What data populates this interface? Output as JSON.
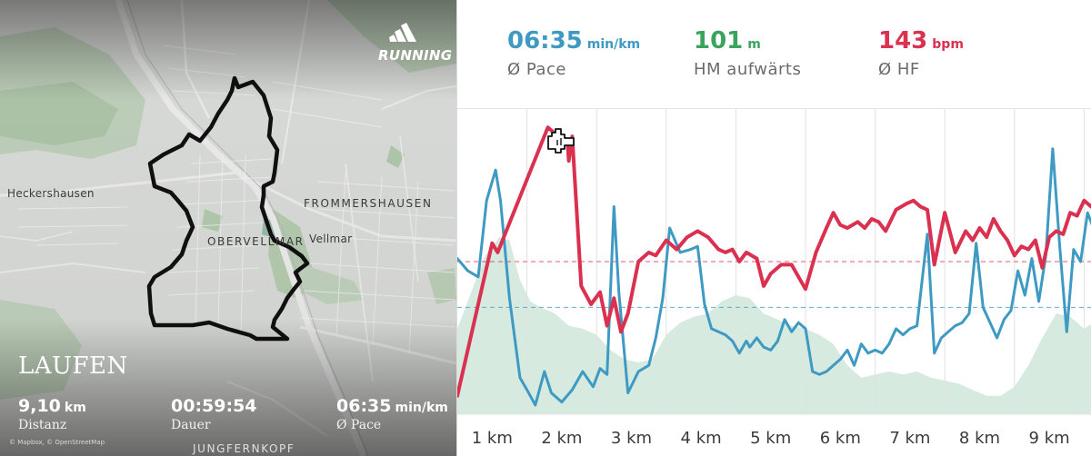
{
  "map": {
    "brand": "RUNNING",
    "activity_type": "LAUFEN",
    "attribution": "© Mapbox, © OpenStreetMap",
    "places": {
      "heckershausen": "Heckershausen",
      "frommershausen": "FROMMERSHAUSEN",
      "obervellmar": "OBERVELLMAR",
      "vellmar": "Vellmar",
      "jungfernkopf": "JUNGFERNKOPF"
    },
    "stats": {
      "distance": {
        "value": "9,10",
        "unit": "km",
        "label": "Distanz"
      },
      "duration": {
        "value": "00:59:54",
        "unit": "",
        "label": "Dauer"
      },
      "pace": {
        "value": "06:35",
        "unit": "min/km",
        "label": "Ø Pace"
      }
    }
  },
  "summary": {
    "pace": {
      "value": "06:35",
      "unit": "min/km",
      "label": "Ø Pace",
      "color": "#3e9ac2"
    },
    "elevation": {
      "value": "101",
      "unit": "m",
      "label": "HM aufwärts",
      "color": "#3aa35c"
    },
    "heart_rate": {
      "value": "143",
      "unit": "bpm",
      "label": "Ø HF",
      "color": "#d9314f"
    }
  },
  "chart_data": {
    "type": "line",
    "categories": [
      "1 km",
      "2 km",
      "3 km",
      "4 km",
      "5 km",
      "6 km",
      "7 km",
      "8 km",
      "9 km"
    ],
    "x_max_km": 9.55,
    "series": [
      {
        "key": "heart_rate",
        "color": "#d9314f",
        "average": 0.5,
        "points": [
          [
            0,
            0.06
          ],
          [
            0.5,
            0.56
          ],
          [
            0.58,
            0.53
          ],
          [
            1.3,
            0.94
          ],
          [
            1.45,
            0.91
          ],
          [
            1.58,
            0.9
          ],
          [
            1.6,
            0.83
          ],
          [
            1.65,
            0.91
          ],
          [
            1.78,
            0.42
          ],
          [
            1.92,
            0.36
          ],
          [
            2.05,
            0.4
          ],
          [
            2.15,
            0.29
          ],
          [
            2.25,
            0.38
          ],
          [
            2.35,
            0.27
          ],
          [
            2.45,
            0.33
          ],
          [
            2.6,
            0.5
          ],
          [
            2.75,
            0.53
          ],
          [
            2.85,
            0.52
          ],
          [
            3.0,
            0.57
          ],
          [
            3.15,
            0.54
          ],
          [
            3.3,
            0.58
          ],
          [
            3.45,
            0.6
          ],
          [
            3.6,
            0.58
          ],
          [
            3.75,
            0.54
          ],
          [
            3.85,
            0.53
          ],
          [
            3.95,
            0.54
          ],
          [
            4.05,
            0.5
          ],
          [
            4.15,
            0.53
          ],
          [
            4.3,
            0.51
          ],
          [
            4.4,
            0.42
          ],
          [
            4.5,
            0.46
          ],
          [
            4.65,
            0.49
          ],
          [
            4.8,
            0.49
          ],
          [
            4.9,
            0.45
          ],
          [
            5.0,
            0.41
          ],
          [
            5.15,
            0.53
          ],
          [
            5.3,
            0.61
          ],
          [
            5.4,
            0.66
          ],
          [
            5.5,
            0.62
          ],
          [
            5.6,
            0.61
          ],
          [
            5.75,
            0.63
          ],
          [
            5.85,
            0.61
          ],
          [
            5.95,
            0.64
          ],
          [
            6.05,
            0.63
          ],
          [
            6.15,
            0.6
          ],
          [
            6.3,
            0.67
          ],
          [
            6.45,
            0.69
          ],
          [
            6.55,
            0.7
          ],
          [
            6.65,
            0.68
          ],
          [
            6.75,
            0.67
          ],
          [
            6.85,
            0.49
          ],
          [
            7.0,
            0.66
          ],
          [
            7.15,
            0.53
          ],
          [
            7.3,
            0.6
          ],
          [
            7.4,
            0.57
          ],
          [
            7.5,
            0.61
          ],
          [
            7.6,
            0.58
          ],
          [
            7.7,
            0.64
          ],
          [
            7.8,
            0.6
          ],
          [
            7.9,
            0.57
          ],
          [
            8.0,
            0.52
          ],
          [
            8.1,
            0.55
          ],
          [
            8.2,
            0.54
          ],
          [
            8.3,
            0.57
          ],
          [
            8.4,
            0.48
          ],
          [
            8.5,
            0.58
          ],
          [
            8.6,
            0.6
          ],
          [
            8.7,
            0.59
          ],
          [
            8.8,
            0.66
          ],
          [
            8.9,
            0.65
          ],
          [
            9.0,
            0.7
          ],
          [
            9.1,
            0.68
          ],
          [
            9.2,
            0.72
          ],
          [
            9.3,
            0.7
          ],
          [
            9.4,
            0.72
          ],
          [
            9.55,
            0.7
          ]
        ]
      },
      {
        "key": "pace",
        "color": "#3e9ac2",
        "average": 0.35,
        "points": [
          [
            0,
            0.51
          ],
          [
            0.15,
            0.47
          ],
          [
            0.3,
            0.45
          ],
          [
            0.42,
            0.7
          ],
          [
            0.55,
            0.8
          ],
          [
            0.62,
            0.7
          ],
          [
            0.75,
            0.38
          ],
          [
            0.9,
            0.12
          ],
          [
            1.0,
            0.08
          ],
          [
            1.12,
            0.03
          ],
          [
            1.25,
            0.14
          ],
          [
            1.35,
            0.07
          ],
          [
            1.5,
            0.04
          ],
          [
            1.65,
            0.08
          ],
          [
            1.8,
            0.14
          ],
          [
            1.95,
            0.09
          ],
          [
            2.05,
            0.15
          ],
          [
            2.15,
            0.13
          ],
          [
            2.25,
            0.68
          ],
          [
            2.32,
            0.4
          ],
          [
            2.45,
            0.07
          ],
          [
            2.6,
            0.14
          ],
          [
            2.75,
            0.16
          ],
          [
            2.85,
            0.25
          ],
          [
            2.95,
            0.38
          ],
          [
            3.05,
            0.61
          ],
          [
            3.2,
            0.53
          ],
          [
            3.35,
            0.54
          ],
          [
            3.45,
            0.55
          ],
          [
            3.55,
            0.36
          ],
          [
            3.65,
            0.28
          ],
          [
            3.75,
            0.27
          ],
          [
            3.85,
            0.26
          ],
          [
            3.95,
            0.24
          ],
          [
            4.05,
            0.2
          ],
          [
            4.15,
            0.24
          ],
          [
            4.2,
            0.22
          ],
          [
            4.3,
            0.25
          ],
          [
            4.4,
            0.22
          ],
          [
            4.5,
            0.21
          ],
          [
            4.6,
            0.24
          ],
          [
            4.7,
            0.31
          ],
          [
            4.8,
            0.27
          ],
          [
            4.9,
            0.3
          ],
          [
            5.0,
            0.28
          ],
          [
            5.1,
            0.14
          ],
          [
            5.2,
            0.13
          ],
          [
            5.3,
            0.14
          ],
          [
            5.4,
            0.16
          ],
          [
            5.5,
            0.18
          ],
          [
            5.6,
            0.21
          ],
          [
            5.7,
            0.16
          ],
          [
            5.8,
            0.23
          ],
          [
            5.9,
            0.2
          ],
          [
            6.0,
            0.21
          ],
          [
            6.1,
            0.2
          ],
          [
            6.2,
            0.23
          ],
          [
            6.3,
            0.28
          ],
          [
            6.4,
            0.26
          ],
          [
            6.5,
            0.28
          ],
          [
            6.6,
            0.29
          ],
          [
            6.75,
            0.59
          ],
          [
            6.85,
            0.2
          ],
          [
            6.95,
            0.25
          ],
          [
            7.05,
            0.27
          ],
          [
            7.15,
            0.29
          ],
          [
            7.25,
            0.3
          ],
          [
            7.35,
            0.33
          ],
          [
            7.45,
            0.56
          ],
          [
            7.55,
            0.35
          ],
          [
            7.65,
            0.3
          ],
          [
            7.75,
            0.25
          ],
          [
            7.85,
            0.31
          ],
          [
            7.95,
            0.34
          ],
          [
            8.05,
            0.47
          ],
          [
            8.15,
            0.39
          ],
          [
            8.25,
            0.51
          ],
          [
            8.35,
            0.37
          ],
          [
            8.45,
            0.52
          ],
          [
            8.55,
            0.87
          ],
          [
            8.65,
            0.55
          ],
          [
            8.75,
            0.27
          ],
          [
            8.85,
            0.54
          ],
          [
            8.95,
            0.5
          ],
          [
            9.05,
            0.66
          ],
          [
            9.15,
            0.6
          ],
          [
            9.25,
            0.58
          ],
          [
            9.35,
            0.61
          ],
          [
            9.55,
            0.6
          ]
        ]
      },
      {
        "key": "elevation",
        "color": "#cfe6da",
        "points": [
          [
            0,
            0.28
          ],
          [
            0.2,
            0.4
          ],
          [
            0.4,
            0.52
          ],
          [
            0.6,
            0.58
          ],
          [
            0.75,
            0.57
          ],
          [
            0.9,
            0.44
          ],
          [
            1.05,
            0.37
          ],
          [
            1.2,
            0.35
          ],
          [
            1.4,
            0.33
          ],
          [
            1.6,
            0.29
          ],
          [
            1.8,
            0.28
          ],
          [
            2.0,
            0.26
          ],
          [
            2.2,
            0.21
          ],
          [
            2.4,
            0.18
          ],
          [
            2.6,
            0.17
          ],
          [
            2.8,
            0.18
          ],
          [
            3.0,
            0.26
          ],
          [
            3.2,
            0.3
          ],
          [
            3.4,
            0.32
          ],
          [
            3.6,
            0.33
          ],
          [
            3.8,
            0.37
          ],
          [
            4.0,
            0.39
          ],
          [
            4.2,
            0.38
          ],
          [
            4.4,
            0.33
          ],
          [
            4.6,
            0.31
          ],
          [
            4.8,
            0.29
          ],
          [
            5.0,
            0.28
          ],
          [
            5.2,
            0.26
          ],
          [
            5.4,
            0.23
          ],
          [
            5.6,
            0.16
          ],
          [
            5.8,
            0.12
          ],
          [
            6.0,
            0.13
          ],
          [
            6.2,
            0.14
          ],
          [
            6.4,
            0.13
          ],
          [
            6.6,
            0.14
          ],
          [
            6.8,
            0.12
          ],
          [
            7.0,
            0.11
          ],
          [
            7.2,
            0.1
          ],
          [
            7.4,
            0.08
          ],
          [
            7.6,
            0.06
          ],
          [
            7.8,
            0.06
          ],
          [
            8.0,
            0.09
          ],
          [
            8.2,
            0.16
          ],
          [
            8.4,
            0.25
          ],
          [
            8.6,
            0.33
          ],
          [
            8.8,
            0.32
          ],
          [
            9.0,
            0.28
          ],
          [
            9.2,
            0.31
          ],
          [
            9.4,
            0.33
          ],
          [
            9.55,
            0.34
          ]
        ]
      }
    ],
    "grid": true
  }
}
